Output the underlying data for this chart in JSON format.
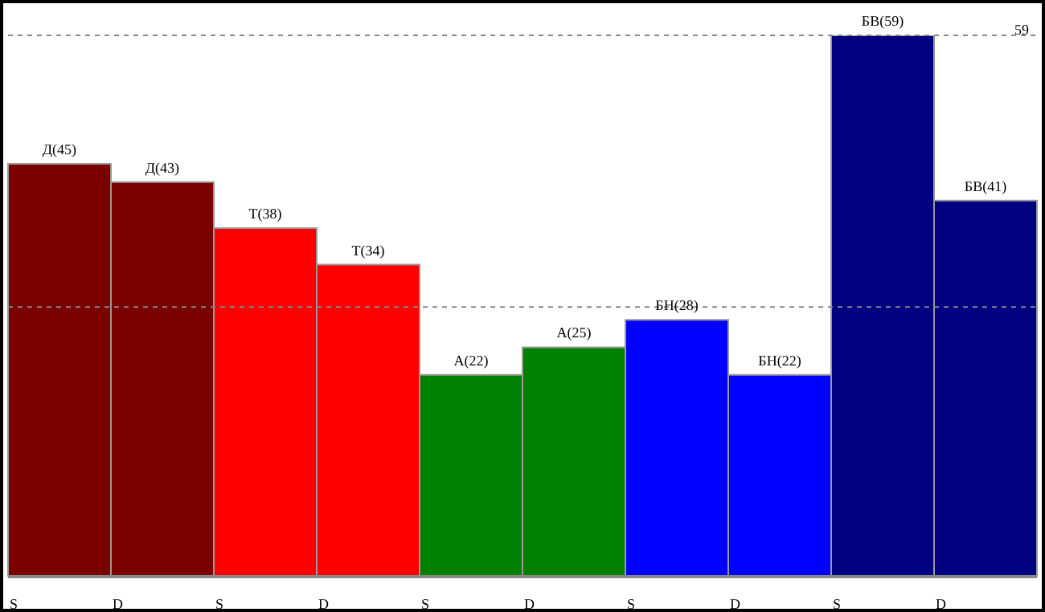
{
  "chart_data": {
    "type": "bar",
    "categories": [
      "S",
      "D",
      "S",
      "D",
      "S",
      "D",
      "S",
      "D",
      "S",
      "D"
    ],
    "values": [
      45,
      43,
      38,
      34,
      22,
      25,
      28,
      22,
      59,
      41
    ],
    "colors": [
      "#7a0000",
      "#7a0000",
      "#ff0000",
      "#ff0000",
      "#008000",
      "#008000",
      "#0000ff",
      "#0000ff",
      "#000080",
      "#000080"
    ],
    "value_labels": [
      "Д(45)",
      "Д(43)",
      "Т(38)",
      "Т(34)",
      "А(22)",
      "А(25)",
      "БН(28)",
      "БН(22)",
      "БВ(59)",
      "БВ(41)"
    ],
    "tick_labels": "x",
    "grid": false,
    "legend": false,
    "ref_lines": [
      {
        "axis": "y",
        "value": 59,
        "label": "59",
        "color": "#888888",
        "line_style": "dashed"
      },
      {
        "axis": "y",
        "value": 29.4,
        "color": "#888888",
        "line_style": "dashed"
      }
    ]
  }
}
